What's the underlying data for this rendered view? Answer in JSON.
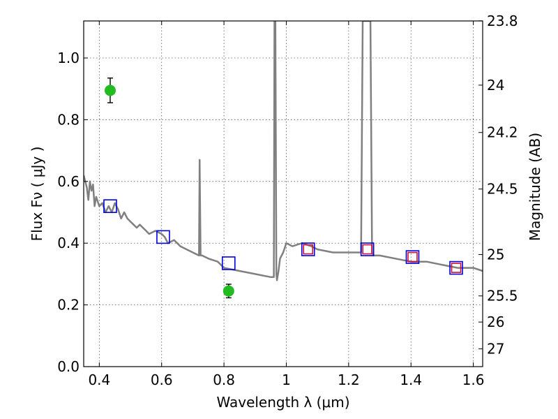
{
  "chart_data": {
    "type": "scatter",
    "xlabel": "Wavelength  λ (μm)",
    "ylabel": "Flux  Fν  ( μJy )",
    "ylabel_right": "Magnitude (AB)",
    "xlim": [
      0.35,
      1.63
    ],
    "ylim": [
      0.0,
      1.12
    ],
    "grid": true,
    "x_ticks": [
      0.4,
      0.6,
      0.8,
      1.0,
      1.2,
      1.4,
      1.6
    ],
    "x_tick_labels": [
      "0.4",
      "0.6",
      "0.8",
      "1",
      "1.2",
      "1.4",
      "1.6"
    ],
    "y_ticks": [
      0.0,
      0.2,
      0.4,
      0.6,
      0.8,
      1.0
    ],
    "y_tick_labels": [
      "0.0",
      "0.2",
      "0.4",
      "0.6",
      "0.8",
      "1.0"
    ],
    "right_ticks": [
      {
        "flux": 1.1204,
        "label": "23.8"
      },
      {
        "flux": 0.912,
        "label": "24"
      },
      {
        "flux": 0.7586,
        "label": "24.2"
      },
      {
        "flux": 0.5754,
        "label": "24.5"
      },
      {
        "flux": 0.3631,
        "label": "25"
      },
      {
        "flux": 0.2291,
        "label": "25.5"
      },
      {
        "flux": 0.1445,
        "label": "26"
      },
      {
        "flux": 0.0575,
        "label": "27"
      }
    ],
    "series": [
      {
        "name": "model-sed",
        "kind": "line",
        "color": "#808080",
        "x": [
          0.35,
          0.36,
          0.365,
          0.37,
          0.375,
          0.38,
          0.385,
          0.39,
          0.4,
          0.41,
          0.42,
          0.43,
          0.44,
          0.45,
          0.46,
          0.47,
          0.48,
          0.49,
          0.5,
          0.51,
          0.52,
          0.53,
          0.54,
          0.55,
          0.56,
          0.58,
          0.6,
          0.61,
          0.62,
          0.64,
          0.66,
          0.68,
          0.7,
          0.72,
          0.722,
          0.725,
          0.728,
          0.73,
          0.75,
          0.78,
          0.8,
          0.85,
          0.9,
          0.95,
          0.96,
          0.962,
          0.965,
          0.968,
          0.97,
          0.975,
          0.98,
          0.99,
          1.0,
          1.02,
          1.05,
          1.08,
          1.1,
          1.15,
          1.2,
          1.24,
          1.245,
          1.25,
          1.27,
          1.275,
          1.28,
          1.3,
          1.35,
          1.4,
          1.45,
          1.5,
          1.55,
          1.6,
          1.63
        ],
        "y": [
          0.62,
          0.58,
          0.54,
          0.6,
          0.57,
          0.59,
          0.52,
          0.55,
          0.52,
          0.53,
          0.5,
          0.52,
          0.5,
          0.53,
          0.51,
          0.48,
          0.5,
          0.48,
          0.47,
          0.46,
          0.45,
          0.46,
          0.45,
          0.44,
          0.43,
          0.44,
          0.43,
          0.42,
          0.4,
          0.41,
          0.39,
          0.38,
          0.37,
          0.36,
          0.67,
          0.36,
          0.36,
          0.36,
          0.35,
          0.34,
          0.32,
          0.31,
          0.3,
          0.29,
          0.29,
          1.12,
          1.12,
          0.3,
          0.28,
          0.31,
          0.35,
          0.37,
          0.4,
          0.39,
          0.4,
          0.39,
          0.38,
          0.37,
          0.37,
          0.37,
          1.12,
          1.12,
          1.12,
          0.37,
          0.36,
          0.36,
          0.35,
          0.34,
          0.34,
          0.33,
          0.32,
          0.32,
          0.31
        ]
      },
      {
        "name": "model-photometry",
        "kind": "square",
        "color": "#d01030",
        "x": [
          1.07,
          1.26,
          1.405,
          1.545
        ],
        "y": [
          0.38,
          0.38,
          0.355,
          0.32
        ]
      },
      {
        "name": "observed-photometry",
        "kind": "square",
        "color": "#0000dd",
        "x": [
          0.435,
          0.605,
          0.815,
          1.07,
          1.26,
          1.405,
          1.545
        ],
        "y": [
          0.52,
          0.42,
          0.335,
          0.38,
          0.38,
          0.355,
          0.32
        ]
      },
      {
        "name": "detection-points",
        "kind": "circle",
        "color": "#22bb22",
        "x": [
          0.435,
          0.815
        ],
        "y": [
          0.895,
          0.245
        ],
        "yerr": [
          0.04,
          0.022
        ]
      }
    ]
  }
}
